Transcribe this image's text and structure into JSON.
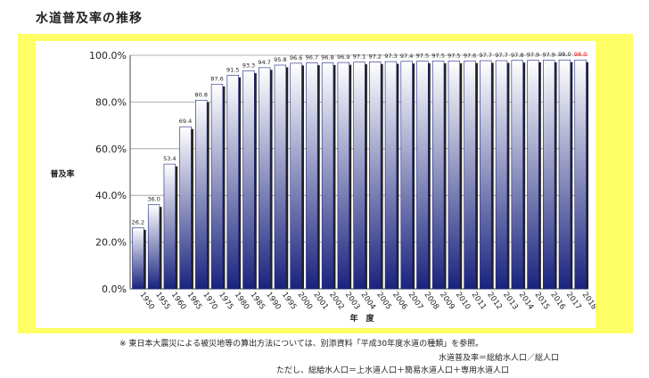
{
  "page": {
    "title": "水道普及率の推移"
  },
  "notes": {
    "note_1": "※ 東日本大震災による被災地等の算出方法については、別添資料「平成30年度水道の種類」を参照。",
    "note_2": "水道普及率＝総給水人口／総人口",
    "note_3": "ただし、総給水人口＝上水道人口＋簡易水道人口＋専用水道人口"
  },
  "chart_data": {
    "type": "bar",
    "title": "",
    "xlabel": "年　度",
    "ylabel": "普及率",
    "ylim": [
      0,
      100
    ],
    "yticks": [
      "0.0%",
      "20.0%",
      "40.0%",
      "60.0%",
      "80.0%",
      "100.0%"
    ],
    "ytick_values": [
      0,
      20,
      40,
      60,
      80,
      100
    ],
    "grid": "horizontal",
    "highlight_color": "#ff0000",
    "bar_color_top": "#ffffff",
    "bar_color_bottom": "#1a237e",
    "categories": [
      "1950",
      "1955",
      "1960",
      "1965",
      "1970",
      "1975",
      "1980",
      "1985",
      "1990",
      "1995",
      "2000",
      "2001",
      "2002",
      "2003",
      "2004",
      "2005",
      "2006",
      "2007",
      "2008",
      "2009",
      "2010",
      "2011",
      "2012",
      "2013",
      "2014",
      "2015",
      "2016",
      "2017",
      "2018"
    ],
    "values": [
      26.2,
      36.0,
      53.4,
      69.4,
      80.8,
      87.6,
      91.5,
      93.3,
      94.7,
      95.8,
      96.6,
      96.7,
      96.8,
      96.9,
      97.1,
      97.2,
      97.3,
      97.4,
      97.5,
      97.5,
      97.5,
      97.6,
      97.7,
      97.7,
      97.8,
      97.9,
      97.9,
      98.0,
      98.0
    ],
    "labels": [
      "26.2",
      "36.0",
      "53.4",
      "69.4",
      "80.8",
      "87.6",
      "91.5",
      "93.3",
      "94.7",
      "95.8",
      "96.6",
      "96.7",
      "96.8",
      "96.9",
      "97.1",
      "97.2",
      "97.3",
      "97.4",
      "97.5",
      "97.5",
      "97.5",
      "97.6",
      "97.7",
      "97.7",
      "97.8",
      "97.9",
      "97.9",
      "98.0",
      "98.0"
    ],
    "highlight_index": 28
  }
}
